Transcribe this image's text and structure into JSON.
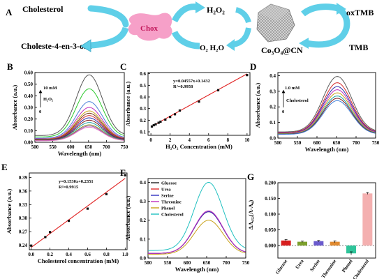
{
  "scheme": {
    "panel_letter": "A",
    "cholesterol": "Cholesterol",
    "chox": "Chox",
    "h2o2": "H₂O₂",
    "product": "Choleste-4-en-3-one",
    "o2_h2o": "O₂  H₂O",
    "nanozyme": "Co₃O₄@CN",
    "oxtmb": "oxTMB",
    "tmb": "TMB"
  },
  "chart_data": [
    {
      "id": "B",
      "type": "line",
      "panel_letter": "B",
      "xlabel": "Wavelength (nm)",
      "ylabel": "Absorbance (a.u.)",
      "xlim": [
        500,
        750
      ],
      "ylim": [
        0.0,
        0.6
      ],
      "xticks": [
        500,
        550,
        600,
        650,
        700,
        750
      ],
      "yticks": [
        0.0,
        0.1,
        0.2,
        0.3,
        0.4,
        0.5,
        0.6
      ],
      "ytick_labels": [
        "0.00",
        "0.10",
        "0.20",
        "0.30",
        "0.40",
        "0.50",
        "0.60"
      ],
      "peak_wavelength": 652,
      "peaks": [
        0.58,
        0.46,
        0.35,
        0.3,
        0.27,
        0.25,
        0.23,
        0.21,
        0.19,
        0.17,
        0.15,
        0.14,
        0.13
      ],
      "colors": [
        "#555555",
        "#2bc92b",
        "#4a7fd9",
        "#c030c0",
        "#c9a21a",
        "#7a3a1a",
        "#d62d2d",
        "#2d2da8",
        "#7f1c1c",
        "#1ca0a0",
        "#8f8f1c",
        "#9b59b6",
        "#e377c2"
      ],
      "annotation_top": "10 mM",
      "annotation_mid": "H₂O₂",
      "annotation_bottom": "0"
    },
    {
      "id": "C",
      "type": "scatter",
      "panel_letter": "C",
      "xlabel": "H₂O₂ Concentration (mM)",
      "ylabel": "Absorbance (a.u.)",
      "xlim": [
        -0.3,
        10.3
      ],
      "ylim": [
        0.07,
        0.61
      ],
      "xticks": [
        0,
        2,
        4,
        6,
        8,
        10
      ],
      "yticks": [
        0.1,
        0.2,
        0.3,
        0.4,
        0.5,
        0.6
      ],
      "ytick_labels": [
        "0.1",
        "0.2",
        "0.3",
        "0.4",
        "0.5",
        "0.6"
      ],
      "x": [
        0.1,
        0.3,
        0.5,
        0.8,
        1.0,
        1.5,
        2.0,
        2.5,
        3.0,
        5.0,
        7.0,
        10.0
      ],
      "y": [
        0.146,
        0.157,
        0.165,
        0.178,
        0.187,
        0.205,
        0.228,
        0.251,
        0.283,
        0.36,
        0.458,
        0.588
      ],
      "fit": {
        "slope": 0.04557,
        "intercept": 0.1432,
        "color": "#e02020"
      },
      "equation": "y=0.04557x+0.1432",
      "r2": "R²=0.9958"
    },
    {
      "id": "D",
      "type": "line",
      "panel_letter": "D",
      "xlabel": "Wavelength (nm)",
      "ylabel": "Absorbance (a.u.)",
      "xlim": [
        500,
        750
      ],
      "ylim": [
        0.0,
        0.42
      ],
      "xticks": [
        500,
        550,
        600,
        650,
        700,
        750
      ],
      "yticks": [
        0.0,
        0.1,
        0.2,
        0.3,
        0.4
      ],
      "ytick_labels": [
        "0.0",
        "0.1",
        "0.2",
        "0.3",
        "0.4"
      ],
      "peak_wavelength": 652,
      "peaks": [
        0.395,
        0.355,
        0.33,
        0.31,
        0.29,
        0.27,
        0.255,
        0.24
      ],
      "colors": [
        "#5a5a5a",
        "#d62d2d",
        "#2d2da8",
        "#c030c0",
        "#c9a21a",
        "#1ca0a0",
        "#7f1c1c",
        "#3f7fd9"
      ],
      "annotation_top": "1.0 mM",
      "annotation_mid": "Cholesterol",
      "annotation_bottom": "0"
    },
    {
      "id": "E",
      "type": "scatter",
      "panel_letter": "E",
      "xlabel": "Cholesterol concentration (mM)",
      "ylabel": "Absorbance (a.u.)",
      "xlim": [
        -0.02,
        1.02
      ],
      "ylim": [
        0.23,
        0.4
      ],
      "xticks": [
        0.0,
        0.2,
        0.4,
        0.6,
        0.8,
        1.0
      ],
      "xtick_labels": [
        "0.0",
        "0.2",
        "0.4",
        "0.6",
        "0.8",
        "1.0"
      ],
      "yticks": [
        0.24,
        0.27,
        0.3,
        0.33,
        0.36,
        0.39
      ],
      "ytick_labels": [
        "0.24",
        "0.27",
        "0.30",
        "0.33",
        "0.36",
        "0.39"
      ],
      "x": [
        0.0,
        0.15,
        0.2,
        0.4,
        0.6,
        0.8,
        1.0
      ],
      "y": [
        0.239,
        0.258,
        0.269,
        0.294,
        0.321,
        0.353,
        0.395
      ],
      "fit": {
        "slope": 0.153,
        "intercept": 0.2351,
        "color": "#e02020"
      },
      "equation": "y=0.1530x+0.2351",
      "r2": "R²=0.9915"
    },
    {
      "id": "F",
      "type": "line",
      "panel_letter": "F",
      "xlabel": "Wavelength (nm)",
      "ylabel": "Absorbance (a.u.)",
      "xlim": [
        500,
        750
      ],
      "ylim": [
        0.0,
        0.42
      ],
      "xticks": [
        500,
        550,
        600,
        650,
        700,
        750
      ],
      "yticks": [
        0.0,
        0.1,
        0.2,
        0.3,
        0.4
      ],
      "ytick_labels": [
        "0.0",
        "0.1",
        "0.2",
        "0.3",
        "0.4"
      ],
      "peak_wavelength": 655,
      "series": [
        {
          "name": "Glucose",
          "color": "#222222",
          "peak": 0.245
        },
        {
          "name": "Urea",
          "color": "#e03030",
          "peak": 0.245
        },
        {
          "name": "Serine",
          "color": "#3030c0",
          "peak": 0.245
        },
        {
          "name": "Threonine",
          "color": "#c030c0",
          "peak": 0.25
        },
        {
          "name": "Phenol",
          "color": "#c9a21a",
          "peak": 0.2
        },
        {
          "name": "Cholesterol",
          "color": "#20c0c0",
          "peak": 0.4
        }
      ]
    },
    {
      "id": "G",
      "type": "bar",
      "panel_letter": "G",
      "ylabel": "ΔA₆₅₂(A-A₀)",
      "categories": [
        "Glucose",
        "Urea",
        "Serine",
        "Threonine",
        "Phenol",
        "Cholesterol"
      ],
      "values": [
        0.016,
        0.012,
        0.014,
        0.012,
        -0.025,
        0.166
      ],
      "errors": [
        0.003,
        0.002,
        0.002,
        0.003,
        0.005,
        0.003
      ],
      "colors": [
        "#d81e1e",
        "#7ca02c",
        "#6a5acd",
        "#e08a30",
        "#2fc49a",
        "#f4b0b0"
      ],
      "ylim": [
        -0.04,
        0.2
      ],
      "yticks": [
        -0.05,
        0.0,
        0.05,
        0.1,
        0.15,
        0.2
      ],
      "ytick_labels": [
        "-0.050",
        "0.000",
        "0.050",
        "0.100",
        "0.150",
        "0.200"
      ]
    }
  ]
}
